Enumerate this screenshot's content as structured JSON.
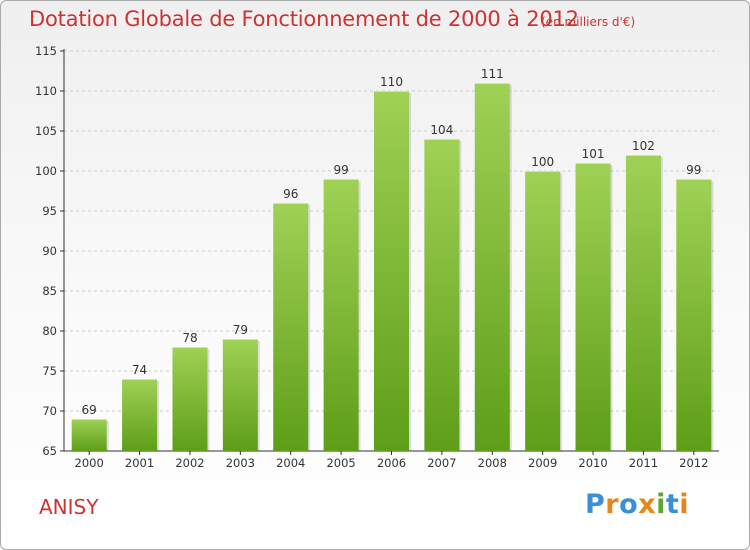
{
  "title": "Dotation Globale de Fonctionnement de 2000 à 2012",
  "subtitle": "(en milliers d'€)",
  "location": "ANISY",
  "logo": {
    "text": "Proxiti",
    "letters": [
      "P",
      "r",
      "o",
      "x",
      "i",
      "t",
      "i"
    ],
    "colors": [
      "#3a8fd6",
      "#e8861e",
      "#3a8fd6",
      "#e8861e",
      "#5aa832",
      "#3a8fd6",
      "#e8861e"
    ]
  },
  "colors": {
    "text_accent": "#cc3333",
    "bar_top": "#9fd155",
    "bar_bottom": "#5e9e18",
    "grid": "#cccccc"
  },
  "chart_data": {
    "type": "bar",
    "title": "Dotation Globale de Fonctionnement de 2000 à 2012",
    "subtitle": "(en milliers d'€)",
    "categories": [
      "2000",
      "2001",
      "2002",
      "2003",
      "2004",
      "2005",
      "2006",
      "2007",
      "2008",
      "2009",
      "2010",
      "2011",
      "2012"
    ],
    "values": [
      69,
      74,
      78,
      79,
      96,
      99,
      110,
      104,
      111,
      100,
      101,
      102,
      99
    ],
    "ylim": [
      65,
      115
    ],
    "yticks": [
      65,
      70,
      75,
      80,
      85,
      90,
      95,
      100,
      105,
      110,
      115
    ],
    "grid": true,
    "legend": false
  }
}
